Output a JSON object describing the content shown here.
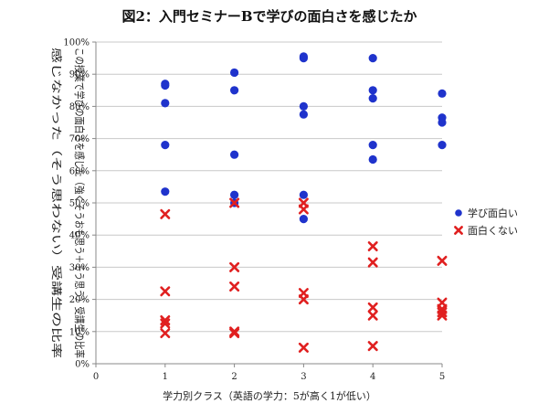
{
  "chart_data": {
    "type": "scatter",
    "title": "図2：入門セミナーBで学びの面白さを感じたか",
    "xlabel": "学力別クラス（英語の学力：5が高く1が低い）",
    "ylabel_lines": [
      "この授業で学びの面白さを感じた（強くそうおも思う＋そう思う）受講生の比率",
      "感じなかった（そう思わない）受講生の比率"
    ],
    "xlim": [
      0,
      5
    ],
    "ylim": [
      0,
      100
    ],
    "x_ticks": [
      "0",
      "1",
      "2",
      "3",
      "4",
      "5"
    ],
    "y_ticks": [
      "0%",
      "10%",
      "20%",
      "30%",
      "40%",
      "50%",
      "60%",
      "70%",
      "80%",
      "90%",
      "100%"
    ],
    "grid": "horizontal",
    "legend_position": "right",
    "series": [
      {
        "name": "学び面白い",
        "marker": "circle",
        "color": "#1f33cc",
        "points": [
          [
            1,
            87
          ],
          [
            1,
            86.5
          ],
          [
            1,
            81
          ],
          [
            1,
            68
          ],
          [
            1,
            53.5
          ],
          [
            2,
            90.5
          ],
          [
            2,
            85
          ],
          [
            2,
            65
          ],
          [
            2,
            52.5
          ],
          [
            2,
            50
          ],
          [
            3,
            95.5
          ],
          [
            3,
            95
          ],
          [
            3,
            80
          ],
          [
            3,
            77.5
          ],
          [
            3,
            52.5
          ],
          [
            3,
            45
          ],
          [
            4,
            95
          ],
          [
            4,
            85
          ],
          [
            4,
            82.5
          ],
          [
            4,
            68
          ],
          [
            4,
            63.5
          ],
          [
            5,
            84
          ],
          [
            5,
            76.5
          ],
          [
            5,
            75
          ],
          [
            5,
            68
          ]
        ]
      },
      {
        "name": "面白くない",
        "marker": "x",
        "color": "#e02020",
        "points": [
          [
            1,
            46.5
          ],
          [
            1,
            22.5
          ],
          [
            1,
            13.5
          ],
          [
            1,
            12.5
          ],
          [
            1,
            9.5
          ],
          [
            2,
            50
          ],
          [
            2,
            30
          ],
          [
            2,
            24
          ],
          [
            2,
            10
          ],
          [
            2,
            9.5
          ],
          [
            3,
            50
          ],
          [
            3,
            48
          ],
          [
            3,
            22
          ],
          [
            3,
            20
          ],
          [
            3,
            5
          ],
          [
            4,
            36.5
          ],
          [
            4,
            31.5
          ],
          [
            4,
            17.5
          ],
          [
            4,
            15
          ],
          [
            4,
            5.5
          ],
          [
            5,
            32
          ],
          [
            5,
            19
          ],
          [
            5,
            17
          ],
          [
            5,
            16
          ],
          [
            5,
            15
          ]
        ]
      }
    ]
  }
}
